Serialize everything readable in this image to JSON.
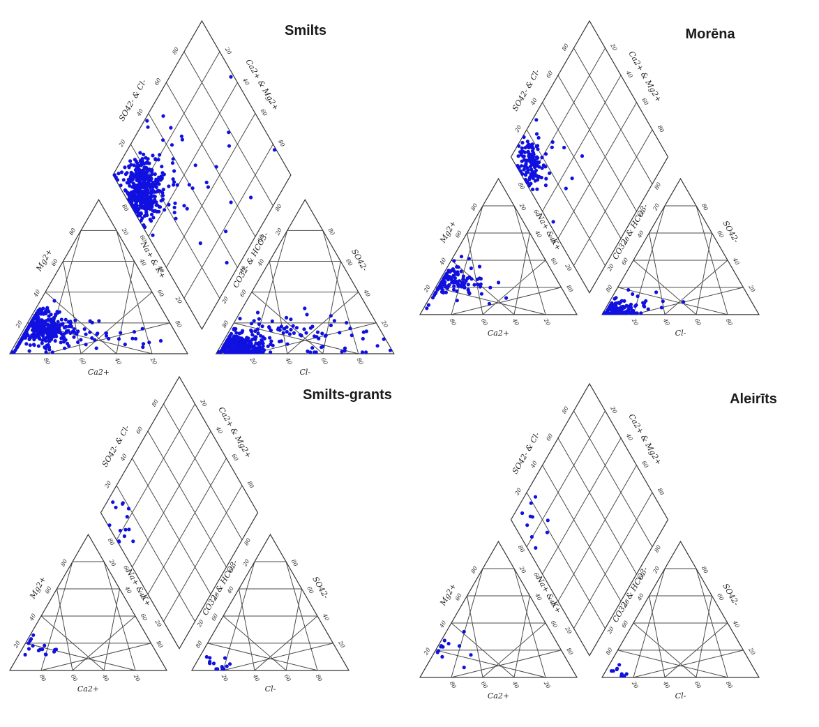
{
  "chart_data": [
    {
      "type": "piper",
      "title": "Smilts",
      "axis_labels": {
        "cation_bottom": "Ca2+",
        "cation_left": "Mg2+",
        "cation_right": "Na+ & K+",
        "anion_bottom": "Cl-",
        "anion_left": "CO32- & HCO3-",
        "anion_right": "SO42-",
        "diamond_upper_left": "SO42- & Cl-",
        "diamond_upper_right": "Ca2+ & Mg2+"
      },
      "tick_labels": [
        "20",
        "40",
        "60",
        "80"
      ],
      "point_color": "#1010e0",
      "cations": {
        "clusters": [
          {
            "n": 340,
            "center": [
              75,
              18,
              7
            ],
            "spread": [
              9,
              6
            ]
          },
          {
            "n": 50,
            "center": [
              62,
              14,
              24
            ],
            "spread": [
              14,
              6
            ]
          },
          {
            "n": 14,
            "center": [
              34,
              8,
              58
            ],
            "spread": [
              14,
              4
            ]
          }
        ]
      },
      "anions": {
        "clusters": [
          {
            "n": 330,
            "center": [
              85,
              5,
              10
            ],
            "spread": [
              7,
              4
            ]
          },
          {
            "n": 60,
            "center": [
              60,
              12,
              28
            ],
            "spread": [
              14,
              8
            ]
          },
          {
            "n": 30,
            "center": [
              28,
              12,
              60
            ],
            "spread": [
              14,
              8
            ]
          }
        ]
      },
      "diamond": {
        "clusters": [
          {
            "n": 380,
            "center": [
              12,
              79
            ],
            "spread": [
              7,
              7
            ]
          },
          {
            "n": 50,
            "center": [
              28,
              72
            ],
            "spread": [
              14,
              12
            ]
          },
          {
            "n": 14,
            "center": [
              55,
              42
            ],
            "spread": [
              20,
              18
            ]
          }
        ]
      }
    },
    {
      "type": "piper",
      "title": "Morēna",
      "axis_labels": {
        "cation_bottom": "Ca2+",
        "cation_left": "Mg2+",
        "cation_right": "Na+ & K+",
        "anion_bottom": "Cl-",
        "anion_left": "CO32- & HCO3-",
        "anion_right": "SO42-",
        "diamond_upper_left": "SO42- & Cl-",
        "diamond_upper_right": "Ca2+ & Mg2+"
      },
      "tick_labels": [
        "20",
        "40",
        "60",
        "80"
      ],
      "point_color": "#1010e0",
      "cations": {
        "clusters": [
          {
            "n": 120,
            "center": [
              68,
              26,
              6
            ],
            "spread": [
              9,
              6
            ]
          },
          {
            "n": 14,
            "center": [
              56,
              32,
              12
            ],
            "spread": [
              10,
              8
            ]
          }
        ]
      },
      "anions": {
        "clusters": [
          {
            "n": 110,
            "center": [
              88,
              4,
              8
            ],
            "spread": [
              6,
              4
            ]
          },
          {
            "n": 18,
            "center": [
              70,
              10,
              20
            ],
            "spread": [
              12,
              6
            ]
          }
        ]
      },
      "diamond": {
        "clusters": [
          {
            "n": 115,
            "center": [
              10,
              86
            ],
            "spread": [
              6,
              6
            ]
          },
          {
            "n": 18,
            "center": [
              22,
              74
            ],
            "spread": [
              12,
              10
            ]
          }
        ]
      }
    },
    {
      "type": "piper",
      "title": "Smilts-grants",
      "axis_labels": {
        "cation_bottom": "Ca2+",
        "cation_left": "Mg2+",
        "cation_right": "Na+ & K+",
        "anion_bottom": "Cl-",
        "anion_left": "CO32- & HCO3-",
        "anion_right": "SO42-",
        "diamond_upper_left": "SO42- & Cl-",
        "diamond_upper_right": "Ca2+ & Mg2+"
      },
      "tick_labels": [
        "20",
        "40",
        "60",
        "80"
      ],
      "point_color": "#1010e0",
      "cations": {
        "clusters": [
          {
            "n": 16,
            "center": [
              74,
              18,
              8
            ],
            "spread": [
              9,
              7
            ]
          }
        ]
      },
      "anions": {
        "clusters": [
          {
            "n": 14,
            "center": [
              84,
              6,
              10
            ],
            "spread": [
              7,
              5
            ]
          }
        ]
      },
      "diamond": {
        "clusters": [
          {
            "n": 14,
            "center": [
              12,
              82
            ],
            "spread": [
              8,
              7
            ]
          }
        ]
      }
    },
    {
      "type": "piper",
      "title": "Aleirīts",
      "axis_labels": {
        "cation_bottom": "Ca2+",
        "cation_left": "Mg2+",
        "cation_right": "Na+ & K+",
        "anion_bottom": "Cl-",
        "anion_left": "CO32- & HCO3-",
        "anion_right": "SO42-",
        "diamond_upper_left": "SO42- & Cl-",
        "diamond_upper_right": "Ca2+ & Mg2+"
      },
      "tick_labels": [
        "20",
        "40",
        "60",
        "80"
      ],
      "point_color": "#1010e0",
      "cations": {
        "clusters": [
          {
            "n": 12,
            "center": [
              70,
              22,
              8
            ],
            "spread": [
              9,
              8
            ]
          }
        ]
      },
      "anions": {
        "clusters": [
          {
            "n": 10,
            "center": [
              86,
              4,
              10
            ],
            "spread": [
              6,
              4
            ]
          }
        ]
      },
      "diamond": {
        "clusters": [
          {
            "n": 10,
            "center": [
              10,
              84
            ],
            "spread": [
              7,
              7
            ]
          }
        ]
      }
    }
  ]
}
